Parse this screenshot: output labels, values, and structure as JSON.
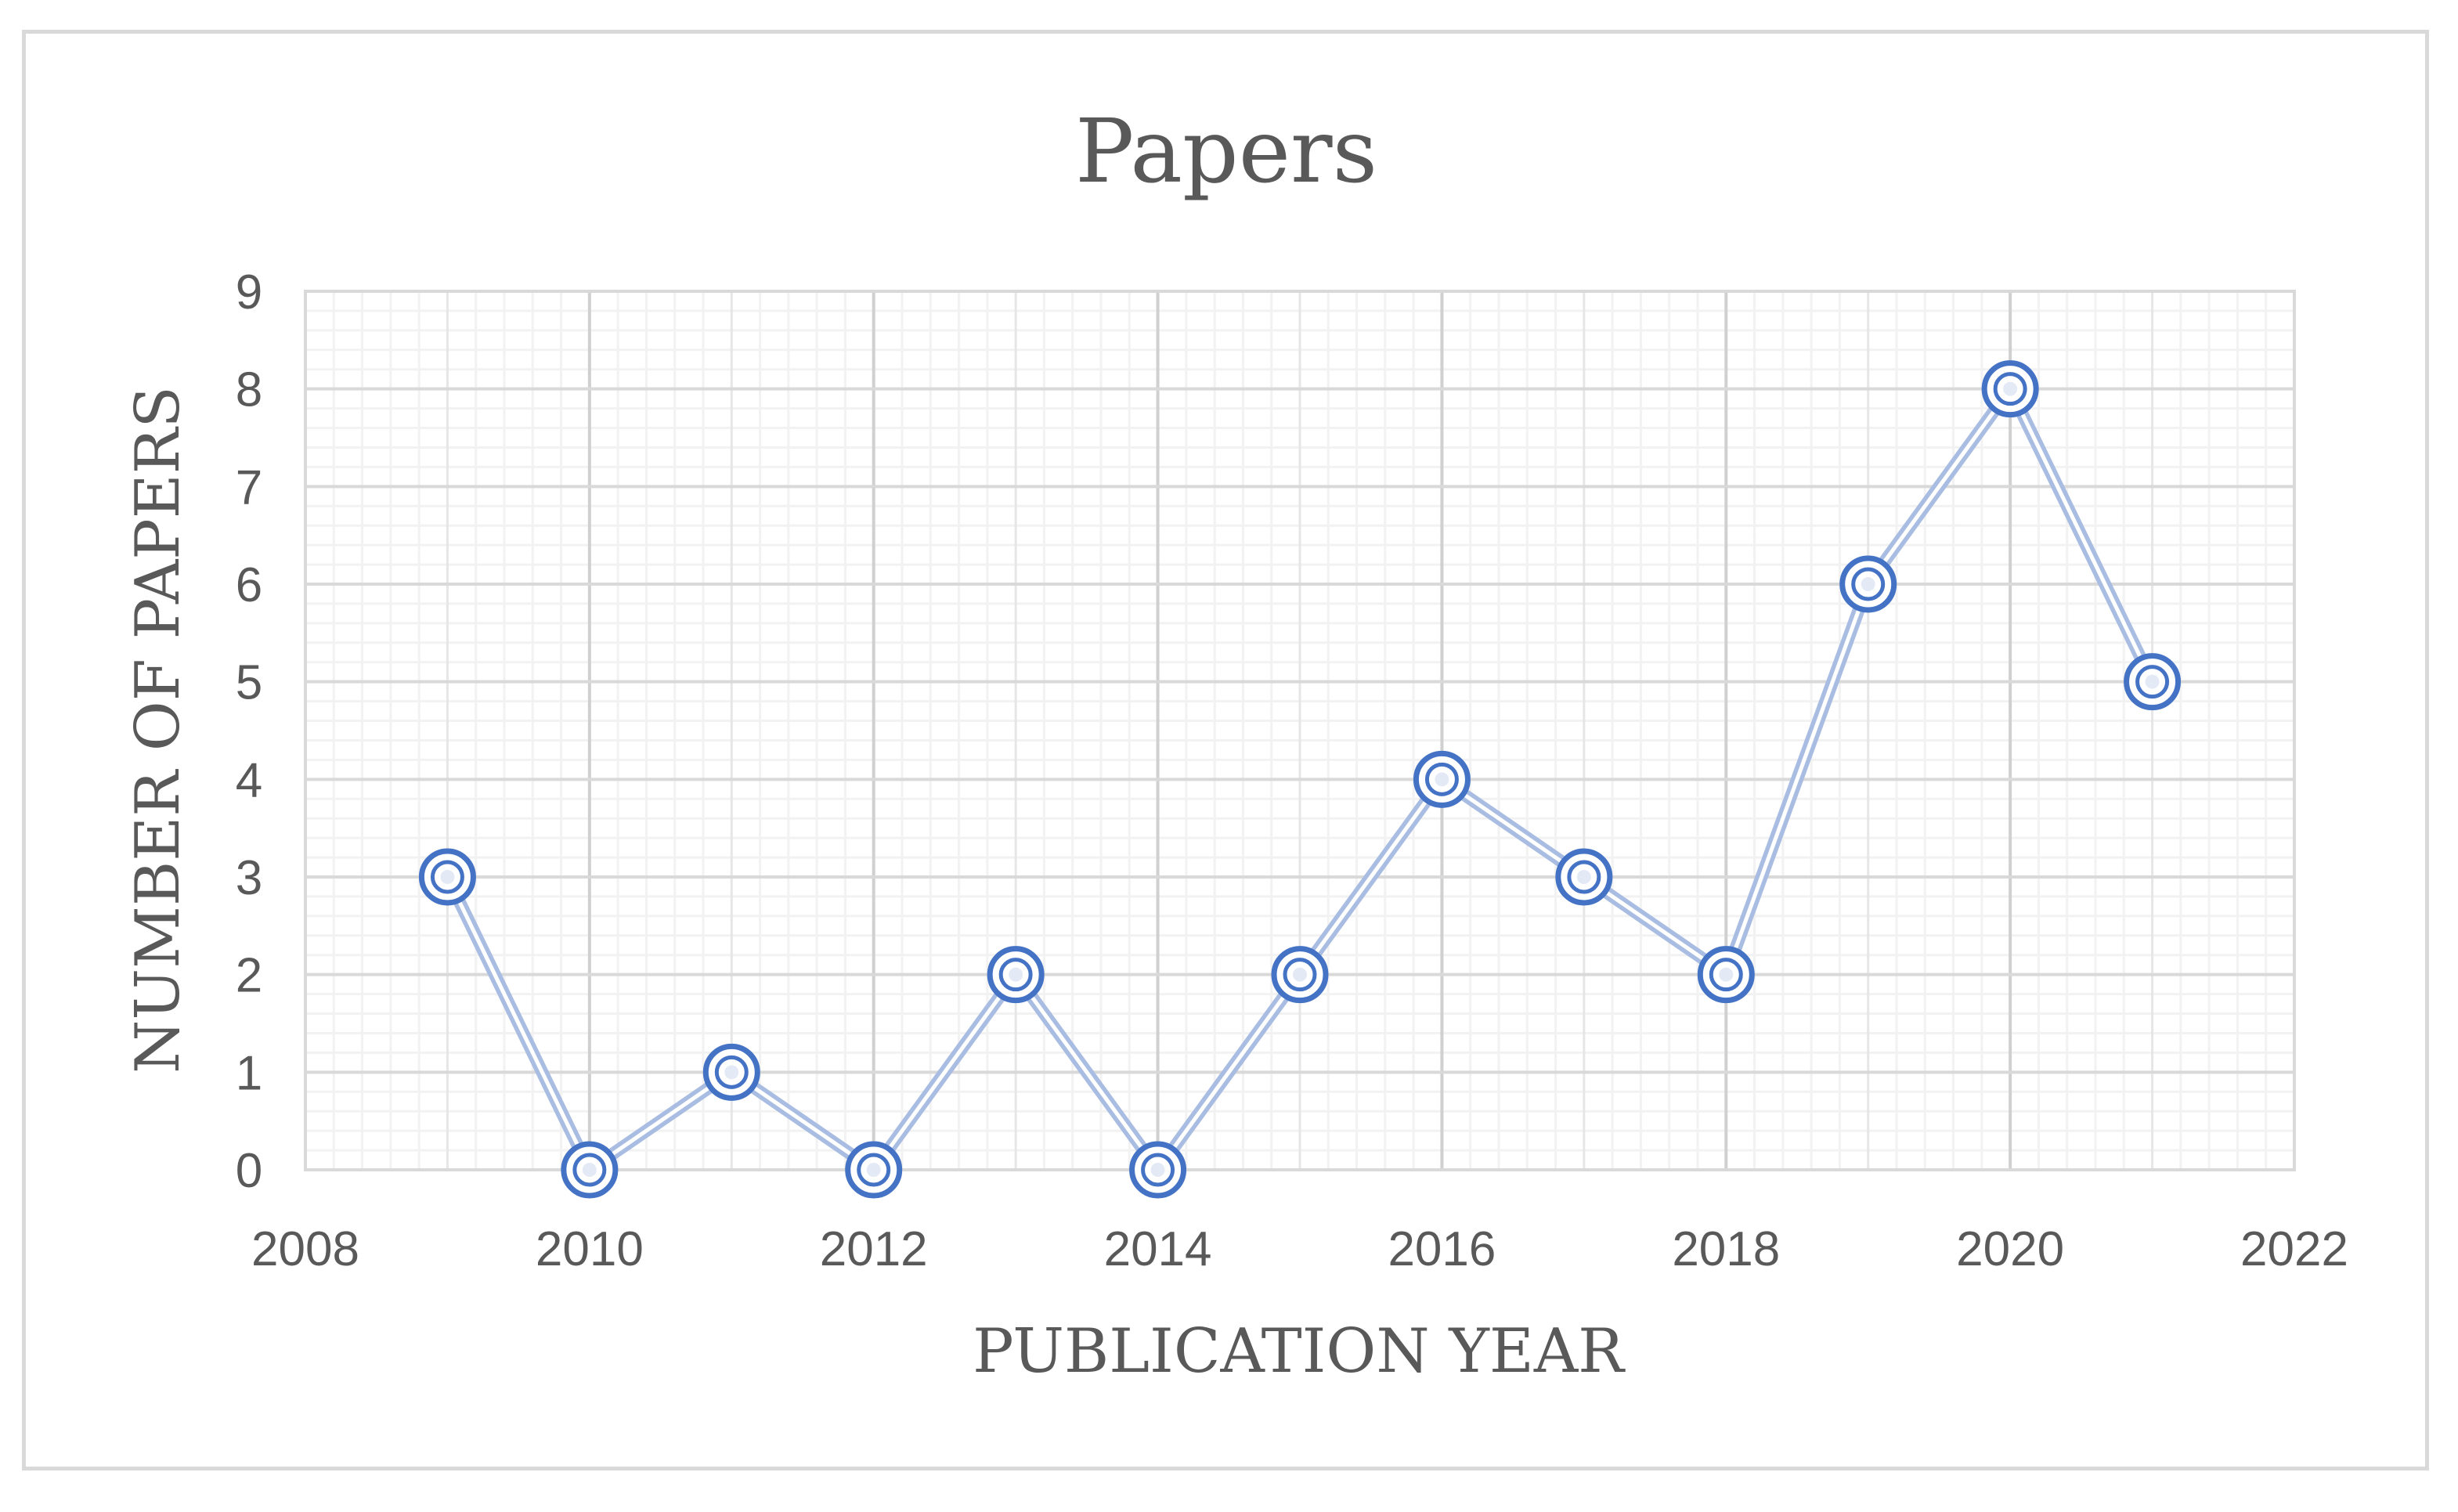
{
  "chart_data": {
    "type": "scatter",
    "mode": "lines+markers",
    "title": "Papers",
    "xlabel": "PUBLICATION YEAR",
    "ylabel": "NUMBER OF PAPERS",
    "xlim": [
      2008,
      2022
    ],
    "ylim": [
      0,
      9
    ],
    "xticks": [
      2008,
      2010,
      2012,
      2014,
      2016,
      2018,
      2020,
      2022
    ],
    "yticks": [
      0,
      1,
      2,
      3,
      4,
      5,
      6,
      7,
      8,
      9
    ],
    "grid": true,
    "legend": "none",
    "series": [
      {
        "x": [
          2009,
          2010,
          2011,
          2012,
          2013,
          2014,
          2015,
          2016,
          2017,
          2018,
          2019,
          2020,
          2021
        ],
        "y": [
          3,
          0,
          1,
          0,
          2,
          0,
          2,
          4,
          3,
          2,
          6,
          8,
          5
        ],
        "color": "#4472c4"
      }
    ]
  }
}
